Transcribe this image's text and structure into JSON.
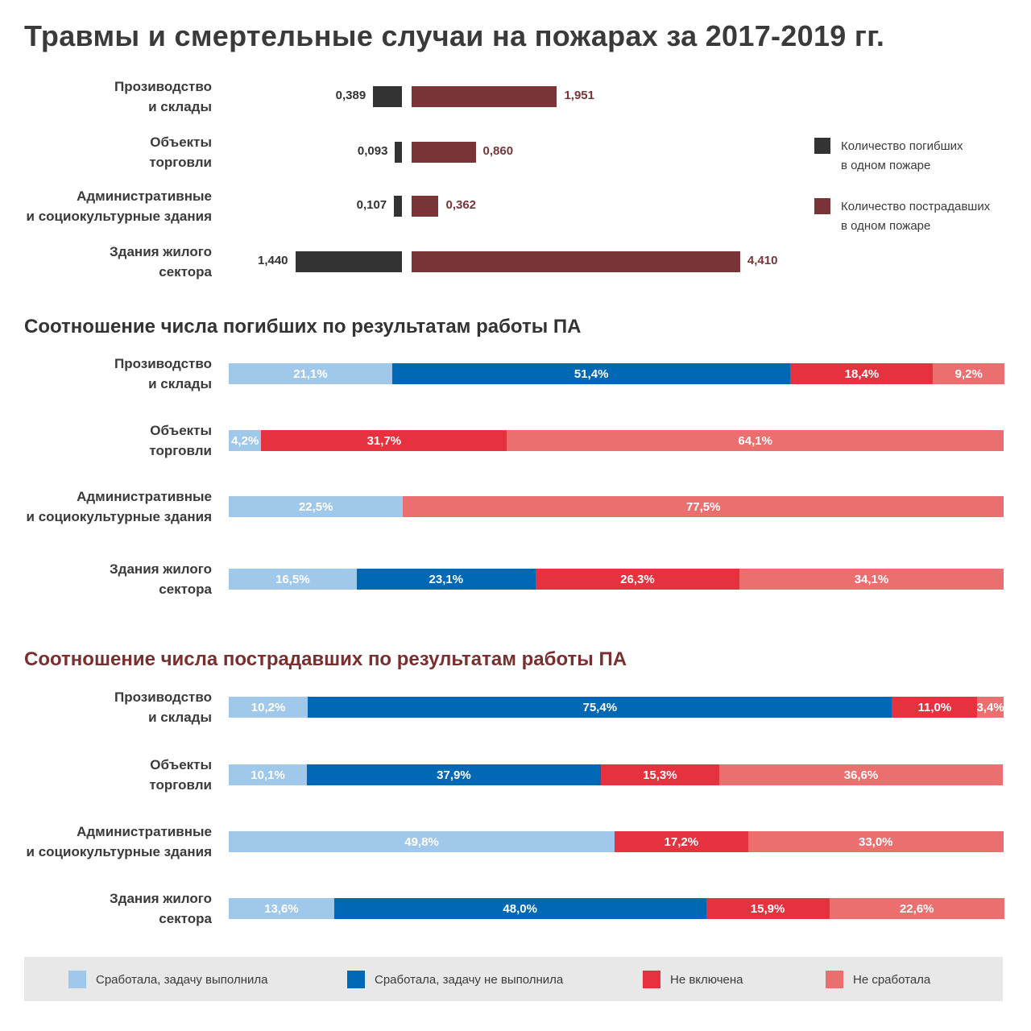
{
  "title": "Травмы и смертельные случаи на пожарах за 2017-2019 гг.",
  "colors": {
    "deaths": "#333333",
    "injured": "#7a3438",
    "s1": "#a0c8eb",
    "s2": "#0068b4",
    "s3": "#e6323e",
    "s4": "#ec6f6f",
    "subtitle2": "#7a2e2e"
  },
  "categories": [
    {
      "line1": "Прозиводство",
      "line2": "и склады"
    },
    {
      "line1": "Объекты",
      "line2": "торговли"
    },
    {
      "line1": "Административные",
      "line2": "и социокультурные здания"
    },
    {
      "line1": "Здания жилого",
      "line2": "сектора"
    }
  ],
  "legend_top": {
    "deaths": {
      "line1": "Количество погибших",
      "line2": "в одном пожаре",
      "color": "#333333"
    },
    "injured": {
      "line1": "Количество пострадавших",
      "line2": "в одном пожаре",
      "color": "#7a3438"
    }
  },
  "subtitle_deaths": "Соотношение числа погибших по результатам работы ПА",
  "subtitle_injured": "Соотношение числа пострадавших по результатам работы ПА",
  "legend_bottom": [
    {
      "label": "Сработала, задачу выполнила",
      "color": "#a0c8eb"
    },
    {
      "label": "Сработала, задачу не выполнила",
      "color": "#0068b4"
    },
    {
      "label": "Не включена",
      "color": "#e6323e"
    },
    {
      "label": "Не сработала",
      "color": "#ec6f6f"
    }
  ],
  "chart_data": [
    {
      "type": "bar",
      "orientation": "horizontal-diverging",
      "title": "Травмы и смертельные случаи на пожарах за 2017-2019 гг.",
      "categories": [
        "Прозиводство и склады",
        "Объекты торговли",
        "Административные и социокультурные здания",
        "Здания жилого сектора"
      ],
      "series": [
        {
          "name": "Количество погибших в одном пожаре",
          "values": [
            0.389,
            0.093,
            0.107,
            1.44
          ],
          "labels": [
            "0,389",
            "0,093",
            "0,107",
            "1,440"
          ]
        },
        {
          "name": "Количество пострадавших в одном пожаре",
          "values": [
            1.951,
            0.86,
            0.362,
            4.41
          ],
          "labels": [
            "1,951",
            "0,860",
            "0,362",
            "4,410"
          ]
        }
      ]
    },
    {
      "type": "bar",
      "orientation": "horizontal-stacked-100",
      "title": "Соотношение числа погибших по результатам работы ПА",
      "categories": [
        "Прозиводство и склады",
        "Объекты торговли",
        "Административные и социокультурные здания",
        "Здания жилого сектора"
      ],
      "series": [
        {
          "name": "Сработала, задачу выполнила",
          "values": [
            21.1,
            4.2,
            22.5,
            16.5
          ],
          "labels": [
            "21,1%",
            "4,2%",
            "22,5%",
            "16,5%"
          ]
        },
        {
          "name": "Сработала, задачу не выполнила",
          "values": [
            51.4,
            0,
            0,
            23.1
          ],
          "labels": [
            "51,4%",
            "",
            "",
            "23,1%"
          ]
        },
        {
          "name": "Не включена",
          "values": [
            18.4,
            31.7,
            0,
            26.3
          ],
          "labels": [
            "18,4%",
            "31,7%",
            "",
            "26,3%"
          ]
        },
        {
          "name": "Не сработала",
          "values": [
            9.2,
            64.1,
            77.5,
            34.1
          ],
          "labels": [
            "9,2%",
            "64,1%",
            "77,5%",
            "34,1%"
          ]
        }
      ]
    },
    {
      "type": "bar",
      "orientation": "horizontal-stacked-100",
      "title": "Соотношение числа пострадавших по результатам работы ПА",
      "categories": [
        "Прозиводство и склады",
        "Объекты торговли",
        "Административные и социокультурные здания",
        "Здания жилого сектора"
      ],
      "series": [
        {
          "name": "Сработала, задачу выполнила",
          "values": [
            10.2,
            10.1,
            49.8,
            13.6
          ],
          "labels": [
            "10,2%",
            "10,1%",
            "49,8%",
            "13,6%"
          ]
        },
        {
          "name": "Сработала, задачу не выполнила",
          "values": [
            75.4,
            37.9,
            0,
            48.0
          ],
          "labels": [
            "75,4%",
            "37,9%",
            "",
            "48,0%"
          ]
        },
        {
          "name": "Не включена",
          "values": [
            11.0,
            15.3,
            17.2,
            15.9
          ],
          "labels": [
            "11,0%",
            "15,3%",
            "17,2%",
            "15,9%"
          ]
        },
        {
          "name": "Не сработала",
          "values": [
            3.4,
            36.6,
            33.0,
            22.6
          ],
          "labels": [
            "3,4%",
            "36,6%",
            "33,0%",
            "22,6%"
          ]
        }
      ]
    }
  ]
}
